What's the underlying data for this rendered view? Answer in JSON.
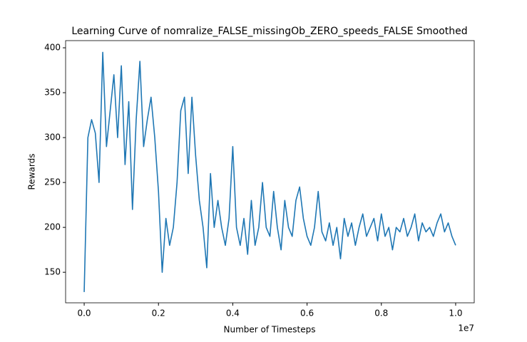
{
  "chart_data": {
    "type": "line",
    "title": "Learning Curve of nomralize_FALSE_missingOb_ZERO_speeds_FALSE Smoothed",
    "x_label": "Number of Timesteps",
    "y_label": "Rewards",
    "x_offset_label": "1e7",
    "x": [
      0,
      100000,
      200000,
      300000,
      400000,
      500000,
      600000,
      700000,
      800000,
      900000,
      1000000,
      1100000,
      1200000,
      1300000,
      1400000,
      1500000,
      1600000,
      1700000,
      1800000,
      1900000,
      2000000,
      2100000,
      2200000,
      2300000,
      2400000,
      2500000,
      2600000,
      2700000,
      2800000,
      2900000,
      3000000,
      3100000,
      3200000,
      3300000,
      3400000,
      3500000,
      3600000,
      3700000,
      3800000,
      3900000,
      4000000,
      4100000,
      4200000,
      4300000,
      4400000,
      4500000,
      4600000,
      4700000,
      4800000,
      4900000,
      5000000,
      5100000,
      5200000,
      5300000,
      5400000,
      5500000,
      5600000,
      5700000,
      5800000,
      5900000,
      6000000,
      6100000,
      6200000,
      6300000,
      6400000,
      6500000,
      6600000,
      6700000,
      6800000,
      6900000,
      7000000,
      7100000,
      7200000,
      7300000,
      7400000,
      7500000,
      7600000,
      7700000,
      7800000,
      7900000,
      8000000,
      8100000,
      8200000,
      8300000,
      8400000,
      8500000,
      8600000,
      8700000,
      8800000,
      8900000,
      9000000,
      9100000,
      9200000,
      9300000,
      9400000,
      9500000,
      9600000,
      9700000,
      9800000,
      9900000,
      10000000
    ],
    "series": [
      {
        "name": "Rewards",
        "color": "#1f77b4",
        "values": [
          128,
          300,
          320,
          305,
          250,
          395,
          290,
          330,
          370,
          300,
          380,
          270,
          340,
          220,
          320,
          385,
          290,
          320,
          345,
          300,
          240,
          150,
          210,
          180,
          200,
          250,
          330,
          345,
          260,
          345,
          280,
          230,
          200,
          155,
          260,
          200,
          230,
          200,
          180,
          210,
          290,
          200,
          180,
          210,
          170,
          230,
          180,
          200,
          250,
          200,
          190,
          240,
          200,
          175,
          230,
          200,
          190,
          230,
          245,
          210,
          190,
          180,
          200,
          240,
          195,
          185,
          205,
          180,
          200,
          165,
          210,
          190,
          205,
          180,
          200,
          215,
          190,
          200,
          210,
          185,
          215,
          190,
          200,
          175,
          200,
          195,
          210,
          190,
          200,
          215,
          185,
          205,
          195,
          200,
          190,
          205,
          215,
          195,
          205,
          190,
          180
        ]
      }
    ],
    "xlim": [
      -500000,
      10500000
    ],
    "ylim": [
      116,
      408
    ],
    "xticks": [
      {
        "value": 0,
        "label": "0.0"
      },
      {
        "value": 2000000,
        "label": "0.2"
      },
      {
        "value": 4000000,
        "label": "0.4"
      },
      {
        "value": 6000000,
        "label": "0.6"
      },
      {
        "value": 8000000,
        "label": "0.8"
      },
      {
        "value": 10000000,
        "label": "1.0"
      }
    ],
    "yticks": [
      150,
      200,
      250,
      300,
      350,
      400
    ],
    "grid": false
  }
}
